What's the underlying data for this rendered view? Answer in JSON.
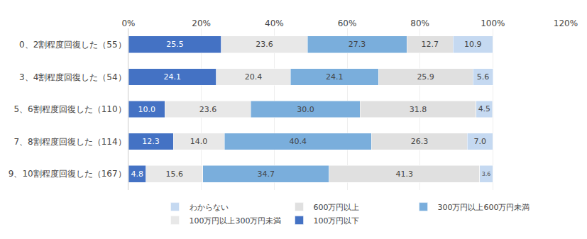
{
  "chart_data": {
    "type": "bar",
    "orientation": "horizontal",
    "stacked": true,
    "data_labels": true,
    "grid": true,
    "legend": "bottom",
    "categories": [
      "0、2割程度回復した（55）",
      "3、4割程度回復した（54）",
      "5、6割程度回復した（110）",
      "7、8割程度回復した（114）",
      "9、10割程度回復した（167）"
    ],
    "series": [
      {
        "name": "100万円以下",
        "color": "#4472C4",
        "values": [
          25.5,
          24.1,
          10.0,
          12.3,
          4.8
        ],
        "value_labels": [
          "25.5",
          "24.1",
          "10.0",
          "12.3",
          "4.8"
        ]
      },
      {
        "name": "100万円以上300万円未満",
        "color": "#E8E8E8",
        "values": [
          23.6,
          20.4,
          23.6,
          14.0,
          15.6
        ],
        "value_labels": [
          "23.6",
          "20.4",
          "23.6",
          "14.0",
          "15.6"
        ]
      },
      {
        "name": "300万円以上600万円未満",
        "color": "#7AAEDC",
        "values": [
          27.3,
          24.1,
          30.0,
          40.4,
          34.7
        ],
        "value_labels": [
          "27.3",
          "24.1",
          "30.0",
          "40.4",
          "34.7"
        ]
      },
      {
        "name": "600万円以上",
        "color": "#E0E0E0",
        "values": [
          12.7,
          25.9,
          31.8,
          26.3,
          41.3
        ],
        "value_labels": [
          "12.7",
          "25.9",
          "31.8",
          "26.3",
          "41.3"
        ]
      },
      {
        "name": "わからない",
        "color": "#C5D9F1",
        "values": [
          10.9,
          5.6,
          4.5,
          7.0,
          3.6
        ],
        "value_labels": [
          "10.9",
          "5.6",
          "4.5",
          "7.0",
          "3.6"
        ]
      }
    ],
    "xlim": [
      0,
      120
    ],
    "xticks": [
      {
        "value": 0,
        "label": "0%"
      },
      {
        "value": 20,
        "label": "20%"
      },
      {
        "value": 40,
        "label": "40%"
      },
      {
        "value": 60,
        "label": "60%"
      },
      {
        "value": 80,
        "label": "80%"
      },
      {
        "value": 100,
        "label": "100%"
      },
      {
        "value": 120,
        "label": "120%"
      }
    ]
  }
}
